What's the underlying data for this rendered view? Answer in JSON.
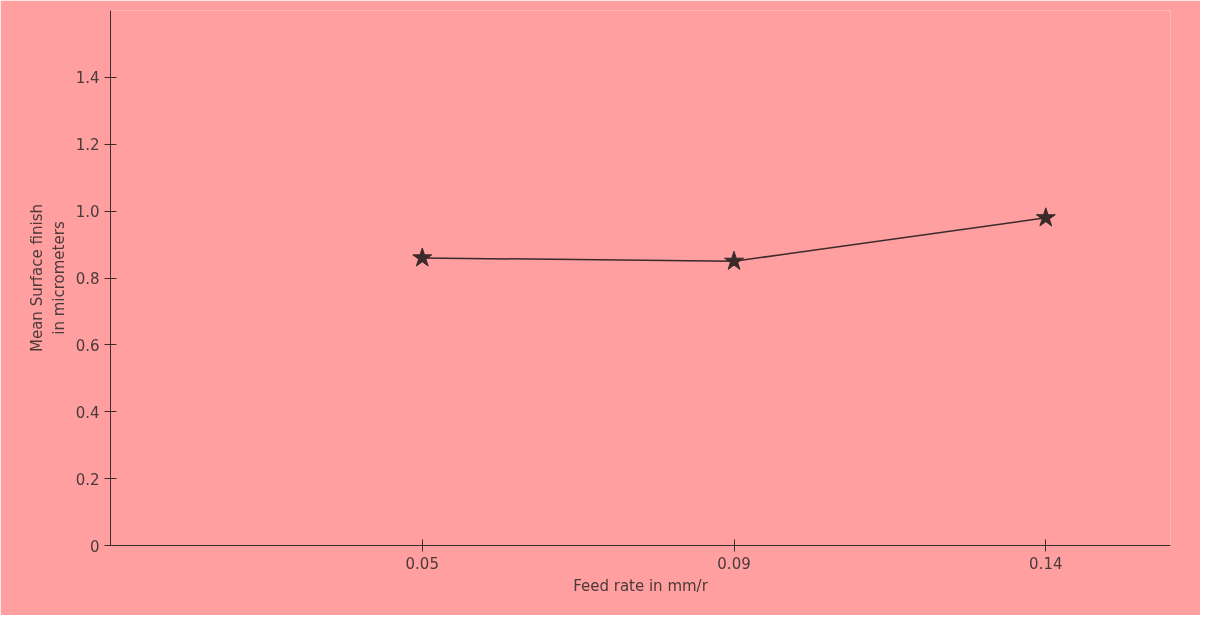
{
  "chart_data": {
    "type": "line",
    "categories": [
      "0.05",
      "0.09",
      "0.14"
    ],
    "series": [
      {
        "color": "#3a2a2a",
        "values": [
          0.86,
          0.85,
          0.98
        ]
      }
    ],
    "xlabel": "Feed rate in mm/r",
    "ylabel": "Mean Surface finish\nin micrometers",
    "ylim": [
      0,
      1.6
    ],
    "yticks": [
      0,
      0.2,
      0.4,
      0.6,
      0.8,
      {
        "value": 1,
        "label": "1.0"
      },
      1.2,
      1.4
    ],
    "marker": "star",
    "line_style": "solid",
    "grid": false
  }
}
